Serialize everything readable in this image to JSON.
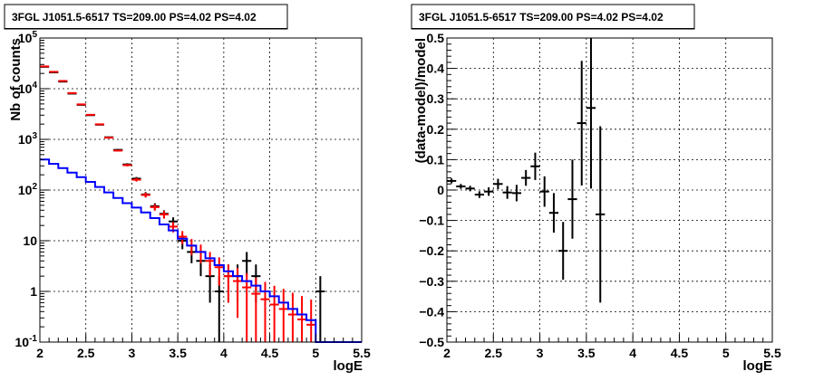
{
  "chart_data": [
    {
      "type": "scatter",
      "title": "3FGL J1051.5-6517 TS=209.00 PS=4.02 PS=4.02",
      "xlabel": "logE",
      "ylabel": "Nb of counts",
      "xlim": [
        2,
        5.5
      ],
      "ylim": [
        0.1,
        100000
      ],
      "yscale": "log",
      "grid": true,
      "x_ticks": [
        "2",
        "2.5",
        "3",
        "3.5",
        "4",
        "4.5",
        "5",
        "5.5"
      ],
      "y_ticks": [
        "10^{-1}",
        "1",
        "10",
        "10^{2}",
        "10^{3}",
        "10^{4}",
        "10^{5}"
      ],
      "series": [
        {
          "style": "errorbar",
          "color": "#000000",
          "x": [
            2.05,
            2.15,
            2.25,
            2.35,
            2.45,
            2.55,
            2.65,
            2.75,
            2.85,
            2.95,
            3.05,
            3.15,
            3.25,
            3.35,
            3.45,
            3.55,
            3.65,
            3.75,
            3.85,
            3.95,
            4.05,
            4.15,
            4.25,
            4.35,
            5.05
          ],
          "y": [
            27000,
            21000,
            13800,
            8000,
            4800,
            3000,
            1950,
            1100,
            620,
            320,
            168,
            82,
            48,
            34,
            24,
            10,
            6,
            4,
            2,
            1,
            2,
            2,
            4,
            2,
            1
          ],
          "err": [
            164,
            145,
            117,
            89,
            69,
            55,
            44,
            33,
            25,
            18,
            13,
            9.1,
            6.9,
            5.8,
            4.9,
            3.2,
            2.4,
            2,
            1.4,
            1,
            1.4,
            1.4,
            2,
            1.4,
            1
          ]
        },
        {
          "style": "errorbar",
          "color": "#ff0000",
          "x": [
            2.05,
            2.15,
            2.25,
            2.35,
            2.45,
            2.55,
            2.65,
            2.75,
            2.85,
            2.95,
            3.05,
            3.15,
            3.25,
            3.35,
            3.45,
            3.55,
            3.65,
            3.75,
            3.85,
            3.95,
            4.05,
            4.15,
            4.25,
            4.35,
            4.45,
            4.55,
            4.65,
            4.75,
            4.85,
            4.95
          ],
          "y": [
            27500,
            21500,
            14200,
            8200,
            4900,
            3050,
            1980,
            1080,
            600,
            310,
            160,
            80,
            46,
            33,
            19,
            12,
            8,
            6,
            4,
            3,
            2,
            1.6,
            1.2,
            0.9,
            0.7,
            0.55,
            0.45,
            0.35,
            0.28,
            0.22
          ],
          "err": [
            166,
            147,
            119,
            91,
            70,
            55,
            44,
            33,
            24,
            18,
            13,
            8.9,
            6.8,
            5.7,
            4.4,
            3.5,
            2.8,
            2.4,
            2,
            1.7,
            1.4,
            1.3,
            1.1,
            0.95,
            0.84,
            0.74,
            0.67,
            0.59,
            0.53,
            0.47
          ]
        },
        {
          "style": "step",
          "color": "#0000ff",
          "x": [
            2.05,
            2.15,
            2.25,
            2.35,
            2.45,
            2.55,
            2.65,
            2.75,
            2.85,
            2.95,
            3.05,
            3.15,
            3.25,
            3.35,
            3.45,
            3.55,
            3.65,
            3.75,
            3.85,
            3.95,
            4.05,
            4.15,
            4.25,
            4.35,
            4.45,
            4.55,
            4.65,
            4.75,
            4.85,
            4.95,
            5.05,
            5.15,
            5.25,
            5.35,
            5.45
          ],
          "y": [
            400,
            330,
            270,
            220,
            180,
            145,
            115,
            90,
            70,
            55,
            45,
            36,
            28,
            21,
            16,
            11,
            8,
            6,
            4.5,
            3.3,
            2.5,
            2,
            1.6,
            1.3,
            1,
            0.8,
            0.6,
            0.45,
            0.35,
            0.27,
            0.1,
            0.1,
            0.1,
            0.1,
            0.1
          ]
        }
      ]
    },
    {
      "type": "scatter",
      "title": "3FGL J1051.5-6517 TS=209.00 PS=4.02 PS=4.02",
      "xlabel": "logE",
      "ylabel": "(data-model)/model",
      "xlim": [
        2,
        5.5
      ],
      "ylim": [
        -0.5,
        0.5
      ],
      "grid": true,
      "x_ticks": [
        "2",
        "2.5",
        "3",
        "3.5",
        "4",
        "4.5",
        "5",
        "5.5"
      ],
      "y_ticks": [
        "−0.5",
        "−0.4",
        "−0.3",
        "−0.2",
        "−0.1",
        "0",
        "0.1",
        "0.2",
        "0.3",
        "0.4",
        "0.5"
      ],
      "series": [
        {
          "style": "errorbar",
          "color": "#000000",
          "x": [
            2.05,
            2.15,
            2.25,
            2.35,
            2.45,
            2.55,
            2.65,
            2.75,
            2.85,
            2.95,
            3.05,
            3.15,
            3.25,
            3.35,
            3.45,
            3.55,
            3.65
          ],
          "y": [
            0.03,
            0.012,
            0.005,
            -0.015,
            -0.005,
            0.02,
            -0.008,
            -0.01,
            0.04,
            0.078,
            -0.005,
            -0.075,
            -0.2,
            -0.03,
            0.22,
            0.27,
            -0.08
          ],
          "err": [
            0.008,
            0.008,
            0.009,
            0.011,
            0.014,
            0.017,
            0.021,
            0.027,
            0.026,
            0.045,
            0.05,
            0.065,
            0.095,
            0.13,
            0.205,
            0.265,
            0.29
          ]
        }
      ]
    }
  ]
}
